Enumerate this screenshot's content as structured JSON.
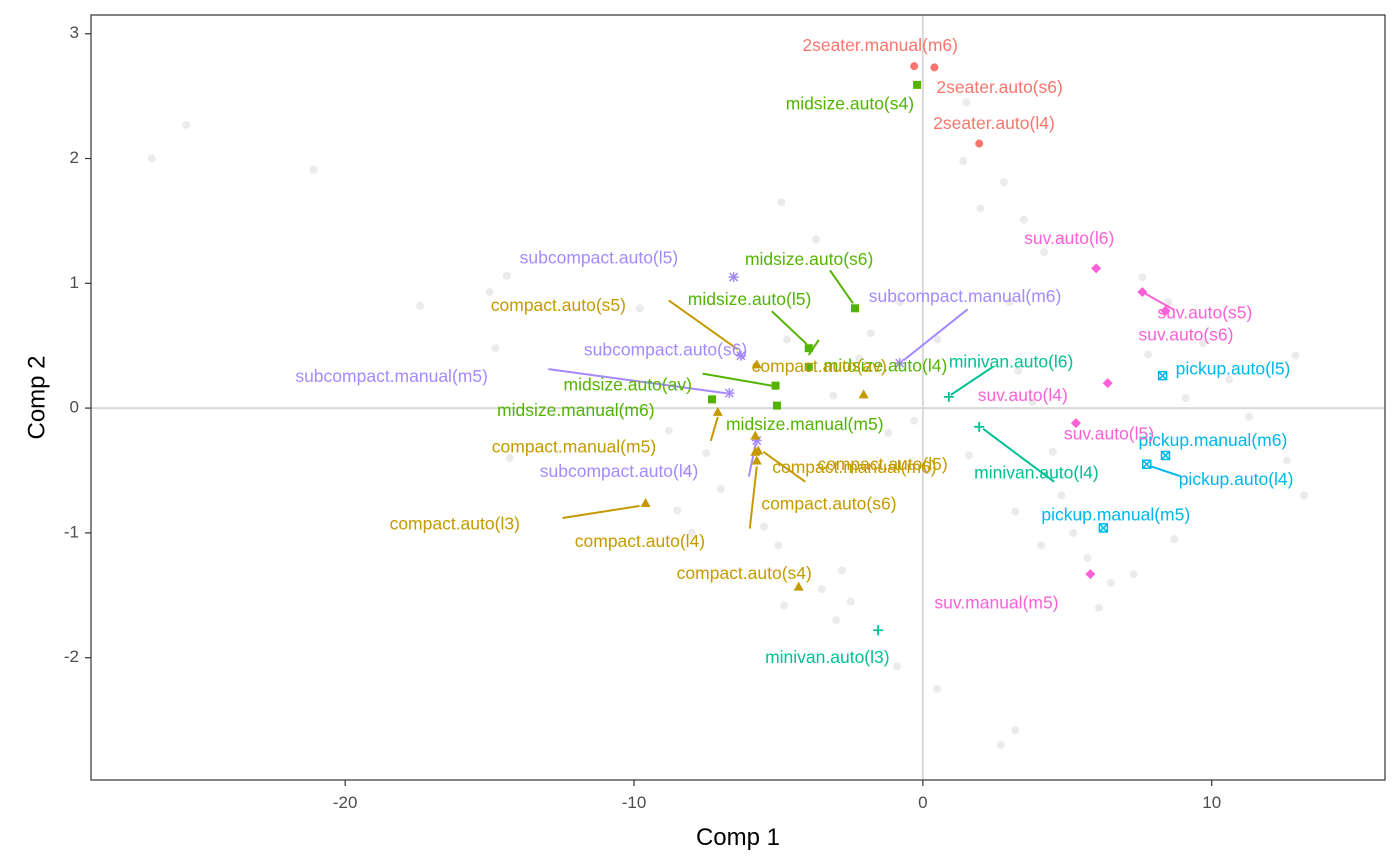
{
  "chart_data": {
    "type": "scatter",
    "xlabel": "Comp 1",
    "ylabel": "Comp 2",
    "xlim": [
      -28.8,
      16.0
    ],
    "ylim": [
      -2.98,
      3.15
    ],
    "x_ticks": [
      -20,
      -10,
      0,
      10
    ],
    "x_tick_labels": [
      "-20",
      "-10",
      "0",
      "10"
    ],
    "y_ticks": [
      -2,
      -1,
      0,
      1,
      2,
      3
    ],
    "y_tick_labels": [
      "-2",
      "-1",
      "0",
      "1",
      "2",
      "3"
    ],
    "reference_lines": {
      "x": 0,
      "y": 0
    },
    "grid": false,
    "legend": "none",
    "groups": [
      {
        "name": "2seater",
        "color": "#F8766D",
        "shape": "circle"
      },
      {
        "name": "compact",
        "color": "#C49A00",
        "shape": "triangle"
      },
      {
        "name": "midsize",
        "color": "#53B400",
        "shape": "square"
      },
      {
        "name": "minivan",
        "color": "#00C094",
        "shape": "plus"
      },
      {
        "name": "pickup",
        "color": "#00B6EB",
        "shape": "boxed-x"
      },
      {
        "name": "subcompact",
        "color": "#A58AFF",
        "shape": "asterisk"
      },
      {
        "name": "suv",
        "color": "#FB61D7",
        "shape": "diamond"
      }
    ],
    "points": [
      {
        "label": "2seater.manual(m6)",
        "group": "2seater",
        "x": -0.3,
        "y": 2.74
      },
      {
        "label": "2seater.auto(s6)",
        "group": "2seater",
        "x": 0.4,
        "y": 2.73
      },
      {
        "label": "2seater.auto(l4)",
        "group": "2seater",
        "x": 1.95,
        "y": 2.12
      },
      {
        "label": "midsize.auto(s4)",
        "group": "midsize",
        "x": -0.2,
        "y": 2.59
      },
      {
        "label": "midsize.auto(s6)",
        "group": "midsize",
        "x": -2.35,
        "y": 0.8
      },
      {
        "label": "midsize.auto(l5)",
        "group": "midsize",
        "x": -3.95,
        "y": 0.48
      },
      {
        "label": "midsize.auto(l4)",
        "group": "midsize",
        "x": -3.95,
        "y": 0.33
      },
      {
        "label": "midsize.auto(av)",
        "group": "midsize",
        "x": -5.1,
        "y": 0.18
      },
      {
        "label": "midsize.manual(m6)",
        "group": "midsize",
        "x": -7.3,
        "y": 0.07
      },
      {
        "label": "midsize.manual(m5)",
        "group": "midsize",
        "x": -5.05,
        "y": 0.02
      },
      {
        "label": "subcompact.auto(l5)",
        "group": "subcompact",
        "x": -6.55,
        "y": 1.05
      },
      {
        "label": "subcompact.manual(m6)",
        "group": "subcompact",
        "x": -0.8,
        "y": 0.36
      },
      {
        "label": "subcompact.auto(s6)",
        "group": "subcompact",
        "x": -6.3,
        "y": 0.42
      },
      {
        "label": "subcompact.manual(m5)",
        "group": "subcompact",
        "x": -6.7,
        "y": 0.12
      },
      {
        "label": "subcompact.auto(l4)",
        "group": "subcompact",
        "x": -5.75,
        "y": -0.26
      },
      {
        "label": "compact.auto(s5)",
        "group": "compact",
        "x": -5.75,
        "y": 0.35
      },
      {
        "label": "compact.auto(av)",
        "group": "compact",
        "x": -2.05,
        "y": 0.11
      },
      {
        "label": "compact.auto(l5)",
        "group": "compact",
        "x": -5.8,
        "y": -0.22
      },
      {
        "label": "compact.manual(m5)",
        "group": "compact",
        "x": -7.1,
        "y": -0.03
      },
      {
        "label": "compact.manual(m6)",
        "group": "compact",
        "x": -5.7,
        "y": -0.34
      },
      {
        "label": "compact.auto(s6)",
        "group": "compact",
        "x": -5.8,
        "y": -0.35
      },
      {
        "label": "compact.auto(l3)",
        "group": "compact",
        "x": -9.6,
        "y": -0.76
      },
      {
        "label": "compact.auto(l4)",
        "group": "compact",
        "x": -5.75,
        "y": -0.42
      },
      {
        "label": "compact.auto(s4)",
        "group": "compact",
        "x": -4.3,
        "y": -1.43
      },
      {
        "label": "minivan.auto(l6)",
        "group": "minivan",
        "x": 0.9,
        "y": 0.09
      },
      {
        "label": "minivan.auto(l4)",
        "group": "minivan",
        "x": 1.95,
        "y": -0.15
      },
      {
        "label": "minivan.auto(l3)",
        "group": "minivan",
        "x": -1.55,
        "y": -1.78
      },
      {
        "label": "pickup.auto(l5)",
        "group": "pickup",
        "x": 8.3,
        "y": 0.26
      },
      {
        "label": "pickup.manual(m6)",
        "group": "pickup",
        "x": 8.4,
        "y": -0.38
      },
      {
        "label": "pickup.auto(l4)",
        "group": "pickup",
        "x": 7.75,
        "y": -0.45
      },
      {
        "label": "pickup.manual(m5)",
        "group": "pickup",
        "x": 6.25,
        "y": -0.96
      },
      {
        "label": "suv.auto(l6)",
        "group": "suv",
        "x": 6.0,
        "y": 1.12
      },
      {
        "label": "suv.auto(s5)",
        "group": "suv",
        "x": 7.6,
        "y": 0.93
      },
      {
        "label": "suv.auto(s6)",
        "group": "suv",
        "x": 8.4,
        "y": 0.78
      },
      {
        "label": "suv.auto(l4)",
        "group": "suv",
        "x": 6.4,
        "y": 0.2
      },
      {
        "label": "suv.auto(l5)",
        "group": "suv",
        "x": 5.3,
        "y": -0.12
      },
      {
        "label": "suv.manual(m5)",
        "group": "suv",
        "x": 5.8,
        "y": -1.33
      }
    ],
    "background_points": [
      [
        -26.7,
        2.0
      ],
      [
        -25.5,
        2.27
      ],
      [
        -21.1,
        1.91
      ],
      [
        -17.4,
        0.82
      ],
      [
        -15.0,
        0.93
      ],
      [
        -14.8,
        0.48
      ],
      [
        -14.4,
        1.06
      ],
      [
        -14.3,
        -0.4
      ],
      [
        -9.8,
        0.8
      ],
      [
        -8.8,
        -0.18
      ],
      [
        -8.5,
        -0.82
      ],
      [
        -8.2,
        -0.5
      ],
      [
        -8.0,
        -1.0
      ],
      [
        -7.5,
        -0.36
      ],
      [
        -7.0,
        -0.65
      ],
      [
        -4.9,
        1.65
      ],
      [
        -4.7,
        0.55
      ],
      [
        -5.5,
        -0.95
      ],
      [
        -5.0,
        -1.1
      ],
      [
        -4.8,
        -1.58
      ],
      [
        -3.5,
        -1.45
      ],
      [
        -3.0,
        -1.7
      ],
      [
        -2.5,
        -1.55
      ],
      [
        -2.2,
        0.4
      ],
      [
        -1.8,
        0.6
      ],
      [
        -1.2,
        -0.2
      ],
      [
        -0.8,
        0.85
      ],
      [
        -0.3,
        -0.1
      ],
      [
        0.2,
        -0.5
      ],
      [
        0.5,
        0.55
      ],
      [
        1.5,
        2.45
      ],
      [
        1.4,
        1.98
      ],
      [
        2.0,
        1.6
      ],
      [
        2.8,
        1.81
      ],
      [
        3.0,
        0.85
      ],
      [
        3.5,
        1.51
      ],
      [
        4.2,
        1.25
      ],
      [
        4.8,
        1.35
      ],
      [
        3.3,
        0.3
      ],
      [
        3.8,
        0.05
      ],
      [
        4.5,
        -0.35
      ],
      [
        4.8,
        -0.7
      ],
      [
        5.5,
        -0.85
      ],
      [
        4.1,
        -1.1
      ],
      [
        3.2,
        -0.83
      ],
      [
        5.2,
        -1.0
      ],
      [
        5.7,
        -1.2
      ],
      [
        6.5,
        -1.4
      ],
      [
        6.1,
        -1.6
      ],
      [
        7.3,
        -1.33
      ],
      [
        7.6,
        1.05
      ],
      [
        7.8,
        0.43
      ],
      [
        8.5,
        0.85
      ],
      [
        9.7,
        0.52
      ],
      [
        10.6,
        0.23
      ],
      [
        11.3,
        -0.07
      ],
      [
        12.6,
        -0.42
      ],
      [
        13.2,
        -0.7
      ],
      [
        12.9,
        0.42
      ],
      [
        8.7,
        -1.05
      ],
      [
        9.1,
        0.08
      ],
      [
        10.3,
        -0.28
      ],
      [
        -3.7,
        1.35
      ],
      [
        -3.1,
        0.1
      ],
      [
        -2.8,
        -1.3
      ],
      [
        -0.9,
        -2.07
      ],
      [
        0.5,
        -2.25
      ],
      [
        2.7,
        -2.7
      ],
      [
        3.2,
        -2.58
      ],
      [
        1.6,
        -0.38
      ]
    ],
    "colors": {
      "panel_border": "#333333",
      "reference_line": "#d9d9d9",
      "background_point": "#ebebeb",
      "axis_text": "#4d4d4d"
    }
  }
}
